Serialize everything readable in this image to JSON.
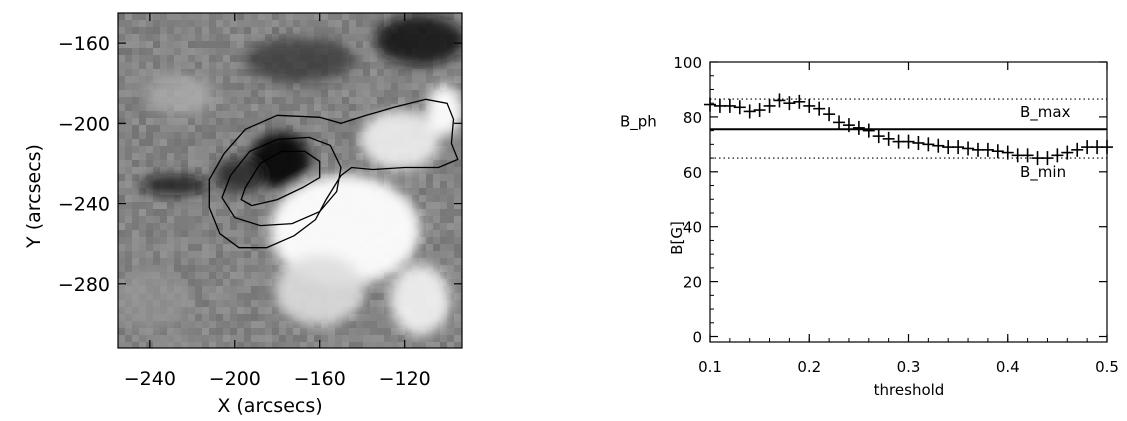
{
  "chart_data": [
    {
      "type": "heatmap",
      "xlabel": "X (arcsecs)",
      "ylabel": "Y (arcsecs)",
      "xlim": [
        -255,
        -93
      ],
      "ylim": [
        -312,
        -145
      ],
      "xticks": [
        -240,
        -200,
        -160,
        -120
      ],
      "yticks": [
        -160,
        -200,
        -240,
        -280
      ],
      "colormap": [
        "#000000",
        "#ffffff"
      ],
      "contours": [
        {
          "name": "",
          "points": [
            [
              -205,
              -215
            ],
            [
              -195,
              -203
            ],
            [
              -180,
              -196
            ],
            [
              -160,
              -197
            ],
            [
              -150,
              -200
            ],
            [
              -138,
              -196
            ],
            [
              -125,
              -192
            ],
            [
              -110,
              -188
            ],
            [
              -100,
              -190
            ],
            [
              -97,
              -198
            ],
            [
              -98,
              -210
            ],
            [
              -95,
              -218
            ],
            [
              -104,
              -222
            ],
            [
              -120,
              -222
            ],
            [
              -135,
              -223
            ],
            [
              -145,
              -222
            ],
            [
              -150,
              -226
            ],
            [
              -157,
              -238
            ],
            [
              -162,
              -248
            ],
            [
              -172,
              -256
            ],
            [
              -185,
              -262
            ],
            [
              -198,
              -262
            ],
            [
              -207,
              -255
            ],
            [
              -212,
              -242
            ],
            [
              -212,
              -228
            ],
            [
              -205,
              -215
            ]
          ]
        },
        {
          "name": "",
          "points": [
            [
              -202,
              -226
            ],
            [
              -193,
              -214
            ],
            [
              -180,
              -208
            ],
            [
              -165,
              -207
            ],
            [
              -155,
              -211
            ],
            [
              -150,
              -222
            ],
            [
              -152,
              -234
            ],
            [
              -160,
              -244
            ],
            [
              -173,
              -250
            ],
            [
              -188,
              -251
            ],
            [
              -200,
              -247
            ],
            [
              -206,
              -237
            ],
            [
              -202,
              -226
            ]
          ]
        },
        {
          "name": "",
          "points": [
            [
              -195,
              -232
            ],
            [
              -188,
              -220
            ],
            [
              -178,
              -214
            ],
            [
              -167,
              -214
            ],
            [
              -160,
              -219
            ],
            [
              -160,
              -227
            ],
            [
              -168,
              -232
            ],
            [
              -180,
              -238
            ],
            [
              -192,
              -241
            ],
            [
              -197,
              -238
            ],
            [
              -195,
              -232
            ]
          ]
        }
      ]
    },
    {
      "type": "scatter",
      "xlabel": "threshold",
      "ylabel": "B[G]",
      "xlim": [
        0.1,
        0.5
      ],
      "ylim": [
        -2,
        100
      ],
      "xticks": [
        0.1,
        0.2,
        0.3,
        0.4,
        0.5
      ],
      "yticks": [
        0,
        20,
        40,
        60,
        80,
        100
      ],
      "x": [
        0.1,
        0.11,
        0.12,
        0.13,
        0.14,
        0.15,
        0.16,
        0.17,
        0.18,
        0.19,
        0.2,
        0.21,
        0.22,
        0.23,
        0.24,
        0.25,
        0.26,
        0.27,
        0.28,
        0.29,
        0.3,
        0.31,
        0.32,
        0.33,
        0.34,
        0.35,
        0.36,
        0.37,
        0.38,
        0.39,
        0.4,
        0.41,
        0.42,
        0.43,
        0.44,
        0.45,
        0.46,
        0.47,
        0.48,
        0.49,
        0.5
      ],
      "y": [
        84.5,
        84,
        84,
        83.5,
        82,
        82.5,
        84,
        86,
        85,
        85.5,
        84,
        83,
        81,
        78,
        77,
        76,
        75,
        73,
        72,
        71,
        71,
        70.5,
        70,
        69.5,
        69,
        69,
        68.5,
        68,
        68,
        67.5,
        67,
        66,
        66,
        65,
        65,
        66,
        67,
        68,
        69,
        69,
        69
      ],
      "hlines": [
        {
          "name": "B_max",
          "y": 86.5,
          "style": "dotted"
        },
        {
          "name": "B_ph",
          "y": 75.5,
          "style": "solid"
        },
        {
          "name": "B_min",
          "y": 65,
          "style": "dotted"
        }
      ]
    }
  ]
}
